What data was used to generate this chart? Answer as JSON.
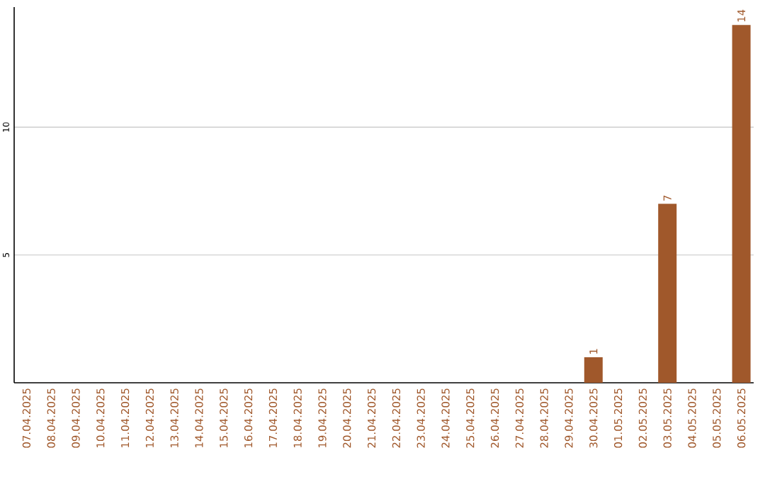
{
  "chart_data": {
    "type": "bar",
    "categories": [
      "07.04.2025",
      "08.04.2025",
      "09.04.2025",
      "10.04.2025",
      "11.04.2025",
      "12.04.2025",
      "13.04.2025",
      "14.04.2025",
      "15.04.2025",
      "16.04.2025",
      "17.04.2025",
      "18.04.2025",
      "19.04.2025",
      "20.04.2025",
      "21.04.2025",
      "22.04.2025",
      "23.04.2025",
      "24.04.2025",
      "25.04.2025",
      "26.04.2025",
      "27.04.2025",
      "28.04.2025",
      "29.04.2025",
      "30.04.2025",
      "01.05.2025",
      "02.05.2025",
      "03.05.2025",
      "04.05.2025",
      "05.05.2025",
      "06.05.2025"
    ],
    "values": [
      0,
      0,
      0,
      0,
      0,
      0,
      0,
      0,
      0,
      0,
      0,
      0,
      0,
      0,
      0,
      0,
      0,
      0,
      0,
      0,
      0,
      0,
      0,
      1,
      0,
      0,
      7,
      0,
      0,
      14
    ],
    "value_labels": [
      null,
      null,
      null,
      null,
      null,
      null,
      null,
      null,
      null,
      null,
      null,
      null,
      null,
      null,
      null,
      null,
      null,
      null,
      null,
      null,
      null,
      null,
      null,
      "1",
      null,
      null,
      "7",
      null,
      null,
      "14"
    ],
    "color": "#a0582b",
    "ylim": [
      0,
      14.7
    ],
    "yticks": [
      5,
      10
    ],
    "grid": "y"
  }
}
